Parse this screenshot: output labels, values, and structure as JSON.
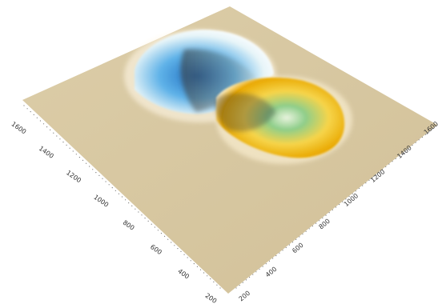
{
  "chart_data": {
    "type": "surface",
    "title": "",
    "xlabel": "",
    "ylabel": "",
    "zlabel": "",
    "x_ticks": [
      "200",
      "400",
      "600",
      "800",
      "1000",
      "1200",
      "1400",
      "1600"
    ],
    "y_ticks": [
      "200",
      "400",
      "600",
      "800",
      "1000",
      "1200",
      "1400",
      "1600"
    ],
    "xlim": [
      150,
      1700
    ],
    "ylim": [
      150,
      1700
    ],
    "grid": false,
    "legend": "none",
    "surface_color": "#d9c9a3",
    "features": [
      {
        "kind": "crater",
        "center": [
          780,
          1560
        ],
        "depth": "deep",
        "colors": [
          "#1f6fc2",
          "#5fb2e8",
          "#e6f4f8"
        ]
      },
      {
        "kind": "crater",
        "center": [
          1330,
          1220
        ],
        "depth": "moderate",
        "colors": [
          "#e9a800",
          "#f6d44a",
          "#8fce8a"
        ]
      }
    ]
  }
}
